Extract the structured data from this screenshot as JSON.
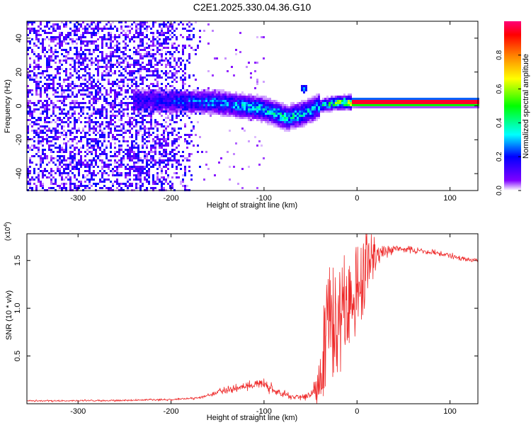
{
  "title": "C2E1.2025.330.04.36.G10",
  "chart_data": [
    {
      "type": "heatmap",
      "name": "spectrogram",
      "xlabel": "Height of straight line (km)",
      "ylabel": "Frequency (Hz)",
      "xlim": [
        -355,
        130
      ],
      "ylim": [
        -50,
        50
      ],
      "xticks": [
        -300,
        -200,
        -100,
        0,
        100
      ],
      "xtick_labels": [
        "-300",
        "-200",
        "-100",
        "0",
        "100"
      ],
      "yticks": [
        -40,
        -20,
        0,
        20,
        40
      ],
      "ytick_labels": [
        "-40",
        "-20",
        "0",
        "20",
        "40"
      ],
      "colorbar": {
        "label": "Normalized spectral amplitude",
        "range": [
          0.0,
          1.0
        ],
        "ticks": [
          0.0,
          0.2,
          0.4,
          0.6,
          0.8
        ],
        "tick_labels": [
          "0.0",
          "0.2",
          "0.4",
          "0.6",
          "0.8"
        ],
        "colormap": [
          "#ffffff",
          "#7f00ff",
          "#0000ff",
          "#00ffff",
          "#00ff00",
          "#ffff00",
          "#ff7f00",
          "#ff0000",
          "#ff0077"
        ]
      },
      "features": {
        "noise_region_x": [
          -355,
          -165
        ],
        "noise_amplitude": 0.15,
        "ridge_center_freq": [
          {
            "x": -225,
            "f": 3
          },
          {
            "x": -150,
            "f": 2
          },
          {
            "x": -100,
            "f": -2
          },
          {
            "x": -75,
            "f": -7
          },
          {
            "x": -60,
            "f": -5
          },
          {
            "x": -40,
            "f": 0
          },
          {
            "x": -20,
            "f": 2
          },
          {
            "x": 0,
            "f": 2
          },
          {
            "x": 130,
            "f": 2
          }
        ],
        "ridge_amplitude": [
          {
            "x": -225,
            "a": 0.15
          },
          {
            "x": -150,
            "a": 0.25
          },
          {
            "x": -80,
            "a": 0.32
          },
          {
            "x": -40,
            "a": 0.3
          },
          {
            "x": -10,
            "a": 0.6
          },
          {
            "x": 5,
            "a": 0.95
          },
          {
            "x": 130,
            "a": 0.95
          }
        ],
        "blip": {
          "x": -57,
          "f": 10,
          "a": 0.3
        }
      }
    },
    {
      "type": "line",
      "name": "snr",
      "xlabel": "Height of straight line (km)",
      "ylabel": "SNR (10 * v/v)",
      "scale_label": "(x10",
      "scale_exponent": "4",
      "multiplier": 10000,
      "color": "#ee2a2a",
      "xlim": [
        -355,
        130
      ],
      "ylim": [
        0.0,
        1.78
      ],
      "xticks": [
        -300,
        -200,
        -100,
        0,
        100
      ],
      "xtick_labels": [
        "-300",
        "-200",
        "-100",
        "0",
        "100"
      ],
      "yticks": [
        0.5,
        1.0,
        1.5
      ],
      "ytick_labels": [
        "0.5",
        "1.0",
        "1.5"
      ],
      "series": [
        {
          "name": "SNR",
          "envelope_x": [
            -355,
            -250,
            -200,
            -170,
            -160,
            -140,
            -120,
            -100,
            -90,
            -80,
            -70,
            -60,
            -50,
            -45,
            -40,
            -35,
            -30,
            -25,
            -20,
            -15,
            -10,
            -5,
            0,
            5,
            10,
            15,
            20,
            25,
            30,
            40,
            50,
            60,
            70,
            80,
            90,
            100,
            110,
            120,
            130
          ],
          "envelope_y": [
            0.03,
            0.035,
            0.045,
            0.06,
            0.09,
            0.14,
            0.19,
            0.21,
            0.14,
            0.1,
            0.08,
            0.07,
            0.09,
            0.14,
            0.3,
            0.55,
            0.8,
            0.9,
            0.95,
            1.05,
            1.1,
            1.1,
            1.2,
            1.3,
            1.45,
            1.52,
            1.56,
            1.58,
            1.6,
            1.62,
            1.62,
            1.61,
            1.6,
            1.58,
            1.57,
            1.55,
            1.53,
            1.51,
            1.5
          ],
          "noise_x": [
            -355,
            -170,
            -140,
            -100,
            -60,
            -45,
            -35,
            -20,
            -10,
            0,
            10,
            20,
            40,
            130
          ],
          "noise_y": [
            0.01,
            0.015,
            0.05,
            0.06,
            0.04,
            0.1,
            0.45,
            0.55,
            0.45,
            0.35,
            0.35,
            0.12,
            0.04,
            0.03
          ]
        }
      ]
    }
  ]
}
